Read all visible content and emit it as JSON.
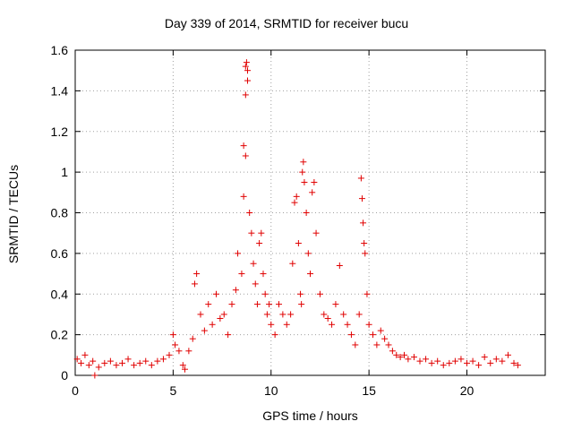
{
  "chart_data": {
    "type": "scatter",
    "title": "Day 339 of 2014, SRMTID for receiver bucu",
    "xlabel": "GPS time / hours",
    "ylabel": "SRMTID / TECUs",
    "xlim": [
      0,
      24
    ],
    "ylim": [
      0,
      1.6
    ],
    "xticks": [
      0,
      5,
      10,
      15,
      20
    ],
    "yticks": [
      0,
      0.2,
      0.4,
      0.6,
      0.8,
      1,
      1.2,
      1.4,
      1.6
    ],
    "ytick_labels": [
      "0",
      "0.2",
      "0.4",
      "0.6",
      "0.8",
      "1",
      "1.2",
      "1.4",
      "1.6"
    ],
    "grid": true,
    "marker": "+",
    "series": [
      {
        "name": "SRMTID",
        "color": "#e00000",
        "x": [
          0.1,
          0.3,
          0.5,
          0.7,
          0.9,
          1.0,
          1.2,
          1.5,
          1.8,
          2.1,
          2.4,
          2.7,
          3.0,
          3.3,
          3.6,
          3.9,
          4.2,
          4.5,
          4.8,
          5.0,
          5.1,
          5.3,
          5.5,
          5.6,
          5.8,
          6.0,
          6.1,
          6.2,
          6.4,
          6.6,
          6.8,
          7.0,
          7.2,
          7.4,
          7.6,
          7.8,
          8.0,
          8.2,
          8.3,
          8.5,
          8.6,
          8.6,
          8.7,
          8.7,
          8.7,
          8.75,
          8.8,
          8.8,
          8.9,
          9.0,
          9.1,
          9.2,
          9.3,
          9.4,
          9.5,
          9.6,
          9.7,
          9.8,
          9.9,
          10.0,
          10.2,
          10.4,
          10.6,
          10.8,
          11.0,
          11.1,
          11.2,
          11.3,
          11.4,
          11.5,
          11.55,
          11.6,
          11.65,
          11.7,
          11.8,
          11.9,
          12.0,
          12.1,
          12.2,
          12.3,
          12.5,
          12.7,
          12.9,
          13.1,
          13.3,
          13.5,
          13.7,
          13.9,
          14.1,
          14.3,
          14.5,
          14.6,
          14.65,
          14.7,
          14.75,
          14.8,
          14.9,
          15.0,
          15.2,
          15.4,
          15.6,
          15.8,
          16.0,
          16.2,
          16.4,
          16.6,
          16.8,
          17.0,
          17.3,
          17.6,
          17.9,
          18.2,
          18.5,
          18.8,
          19.1,
          19.4,
          19.7,
          20.0,
          20.3,
          20.6,
          20.9,
          21.2,
          21.5,
          21.8,
          22.1,
          22.4,
          22.6
        ],
        "y": [
          0.08,
          0.06,
          0.1,
          0.05,
          0.07,
          0.0,
          0.04,
          0.06,
          0.07,
          0.05,
          0.06,
          0.08,
          0.05,
          0.06,
          0.07,
          0.05,
          0.07,
          0.08,
          0.1,
          0.2,
          0.15,
          0.12,
          0.05,
          0.03,
          0.12,
          0.18,
          0.45,
          0.5,
          0.3,
          0.22,
          0.35,
          0.25,
          0.4,
          0.28,
          0.3,
          0.2,
          0.35,
          0.42,
          0.6,
          0.5,
          0.88,
          1.13,
          1.08,
          1.38,
          1.52,
          1.54,
          1.45,
          1.5,
          0.8,
          0.7,
          0.55,
          0.45,
          0.35,
          0.65,
          0.7,
          0.5,
          0.4,
          0.3,
          0.35,
          0.25,
          0.2,
          0.35,
          0.3,
          0.25,
          0.3,
          0.55,
          0.85,
          0.88,
          0.65,
          0.4,
          0.35,
          1.0,
          1.05,
          0.95,
          0.8,
          0.6,
          0.5,
          0.9,
          0.95,
          0.7,
          0.4,
          0.3,
          0.28,
          0.25,
          0.35,
          0.54,
          0.3,
          0.25,
          0.2,
          0.15,
          0.3,
          0.97,
          0.87,
          0.75,
          0.65,
          0.6,
          0.4,
          0.25,
          0.2,
          0.15,
          0.22,
          0.18,
          0.15,
          0.12,
          0.1,
          0.09,
          0.1,
          0.08,
          0.09,
          0.07,
          0.08,
          0.06,
          0.07,
          0.05,
          0.06,
          0.07,
          0.08,
          0.06,
          0.07,
          0.05,
          0.09,
          0.06,
          0.08,
          0.07,
          0.1,
          0.06,
          0.05
        ]
      }
    ]
  }
}
